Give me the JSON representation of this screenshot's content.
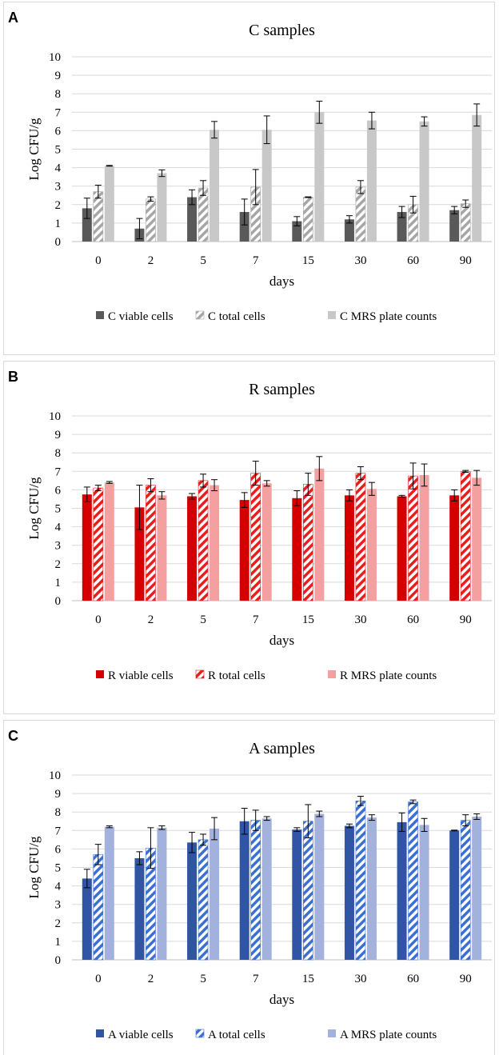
{
  "chart_data": [
    {
      "type": "bar",
      "panel_label": "A",
      "title": "C samples",
      "xlabel": "days",
      "ylabel": "Log CFU/g",
      "ylim": [
        0,
        10
      ],
      "yticks": [
        "0",
        "1",
        "2",
        "3",
        "4",
        "5",
        "6",
        "7",
        "8",
        "9",
        "10"
      ],
      "grid": true,
      "legend_position": "bottom",
      "categories": [
        "0",
        "2",
        "5",
        "7",
        "15",
        "30",
        "60",
        "90"
      ],
      "series": [
        {
          "name": "C viable cells",
          "pattern": "solid",
          "color": "#595959",
          "values": [
            1.8,
            0.7,
            2.4,
            1.6,
            1.1,
            1.2,
            1.6,
            1.7
          ],
          "errors": [
            0.55,
            0.55,
            0.4,
            0.7,
            0.25,
            0.2,
            0.3,
            0.2
          ]
        },
        {
          "name": "C total cells",
          "pattern": "hatched",
          "color": "#a6a6a6",
          "values": [
            2.7,
            2.3,
            2.9,
            2.95,
            2.4,
            2.95,
            2.0,
            2.05
          ],
          "errors": [
            0.35,
            0.12,
            0.4,
            0.95,
            0.02,
            0.35,
            0.45,
            0.2
          ]
        },
        {
          "name": "C MRS plate counts",
          "pattern": "solid",
          "color": "#c8c8c8",
          "values": [
            4.1,
            3.7,
            6.05,
            6.05,
            7.0,
            6.55,
            6.5,
            6.85
          ],
          "errors": [
            0.02,
            0.18,
            0.45,
            0.75,
            0.6,
            0.45,
            0.25,
            0.6
          ]
        }
      ]
    },
    {
      "type": "bar",
      "panel_label": "B",
      "title": "R samples",
      "xlabel": "days",
      "ylabel": "Log CFU/g",
      "ylim": [
        0,
        10
      ],
      "yticks": [
        "0",
        "1",
        "2",
        "3",
        "4",
        "5",
        "6",
        "7",
        "8",
        "9",
        "10"
      ],
      "grid": true,
      "legend_position": "bottom",
      "categories": [
        "0",
        "2",
        "5",
        "7",
        "15",
        "30",
        "60",
        "90"
      ],
      "series": [
        {
          "name": "R viable cells",
          "pattern": "solid",
          "color": "#d40000",
          "values": [
            5.75,
            5.05,
            5.65,
            5.45,
            5.55,
            5.7,
            5.65,
            5.7
          ],
          "errors": [
            0.4,
            1.2,
            0.15,
            0.4,
            0.4,
            0.3,
            0.05,
            0.3
          ]
        },
        {
          "name": "R total cells",
          "pattern": "hatched",
          "color": "#e81e1e",
          "values": [
            6.1,
            6.25,
            6.5,
            6.9,
            6.3,
            6.9,
            6.75,
            7.0
          ],
          "errors": [
            0.15,
            0.35,
            0.35,
            0.65,
            0.6,
            0.35,
            0.7,
            0.05
          ]
        },
        {
          "name": "R MRS plate counts",
          "pattern": "solid",
          "color": "#f4a0a0",
          "values": [
            6.4,
            5.7,
            6.25,
            6.35,
            7.15,
            6.05,
            6.8,
            6.65
          ],
          "errors": [
            0.05,
            0.2,
            0.3,
            0.15,
            0.65,
            0.35,
            0.6,
            0.4
          ]
        }
      ]
    },
    {
      "type": "bar",
      "panel_label": "C",
      "title": "A samples",
      "xlabel": "days",
      "ylabel": "Log CFU/g",
      "ylim": [
        0,
        10
      ],
      "yticks": [
        "0",
        "1",
        "2",
        "3",
        "4",
        "5",
        "6",
        "7",
        "8",
        "9",
        "10"
      ],
      "grid": true,
      "legend_position": "bottom",
      "categories": [
        "0",
        "2",
        "5",
        "7",
        "15",
        "30",
        "60",
        "90"
      ],
      "series": [
        {
          "name": "A viable cells",
          "pattern": "solid",
          "color": "#2f55a4",
          "values": [
            4.4,
            5.5,
            6.35,
            7.5,
            7.05,
            7.25,
            7.45,
            7.0
          ],
          "errors": [
            0.5,
            0.35,
            0.55,
            0.7,
            0.1,
            0.1,
            0.5,
            0.02
          ]
        },
        {
          "name": "A total cells",
          "pattern": "hatched",
          "color": "#3b6fd0",
          "values": [
            5.7,
            6.05,
            6.5,
            7.55,
            7.5,
            8.6,
            8.55,
            7.55
          ],
          "errors": [
            0.55,
            1.1,
            0.3,
            0.55,
            0.9,
            0.25,
            0.1,
            0.3
          ]
        },
        {
          "name": "A MRS plate counts",
          "pattern": "solid",
          "color": "#a3b2dd",
          "values": [
            7.2,
            7.15,
            7.1,
            7.65,
            7.9,
            7.7,
            7.3,
            7.75
          ],
          "errors": [
            0.05,
            0.1,
            0.6,
            0.1,
            0.15,
            0.15,
            0.35,
            0.15
          ]
        }
      ]
    }
  ]
}
